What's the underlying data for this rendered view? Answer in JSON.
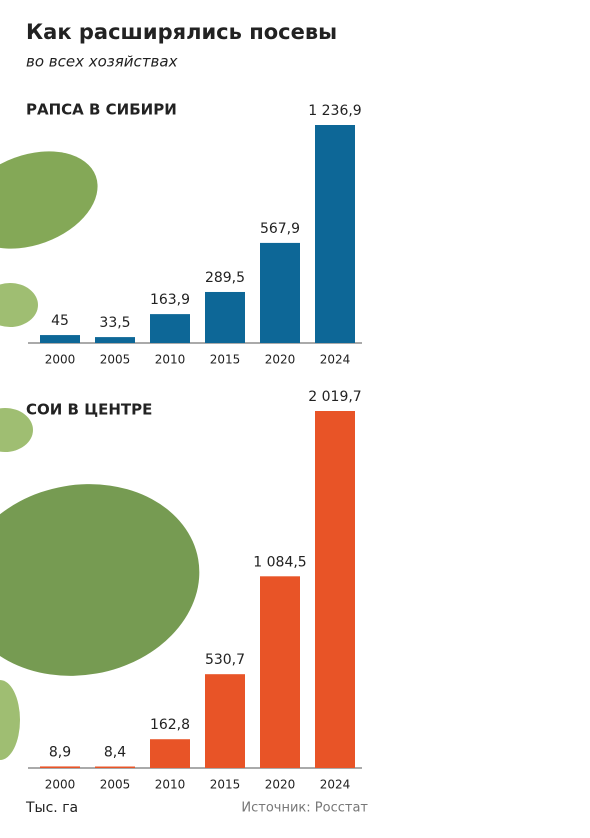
{
  "title": "Как расширялись посевы",
  "subtitle": "во всех хозяйствах",
  "unit": "Тыс. га",
  "source": "Источник: Росстат",
  "chart_data": [
    {
      "type": "bar",
      "title": "РАПСА В СИБИРИ",
      "categories": [
        "2000",
        "2005",
        "2010",
        "2015",
        "2020",
        "2024"
      ],
      "values": [
        45,
        33.5,
        163.9,
        289.5,
        567.9,
        1236.9
      ],
      "value_labels": [
        "45",
        "33,5",
        "163,9",
        "289,5",
        "567,9",
        "1 236,9"
      ],
      "color": "#0d6797"
    },
    {
      "type": "bar",
      "title": "СОИ В ЦЕНТРЕ",
      "categories": [
        "2000",
        "2005",
        "2010",
        "2015",
        "2020",
        "2024"
      ],
      "values": [
        8.9,
        8.4,
        162.8,
        530.7,
        1084.5,
        2019.7
      ],
      "value_labels": [
        "8,9",
        "8,4",
        "162,8",
        "530,7",
        "1 084,5",
        "2 019,7"
      ],
      "color": "#e85427"
    }
  ]
}
